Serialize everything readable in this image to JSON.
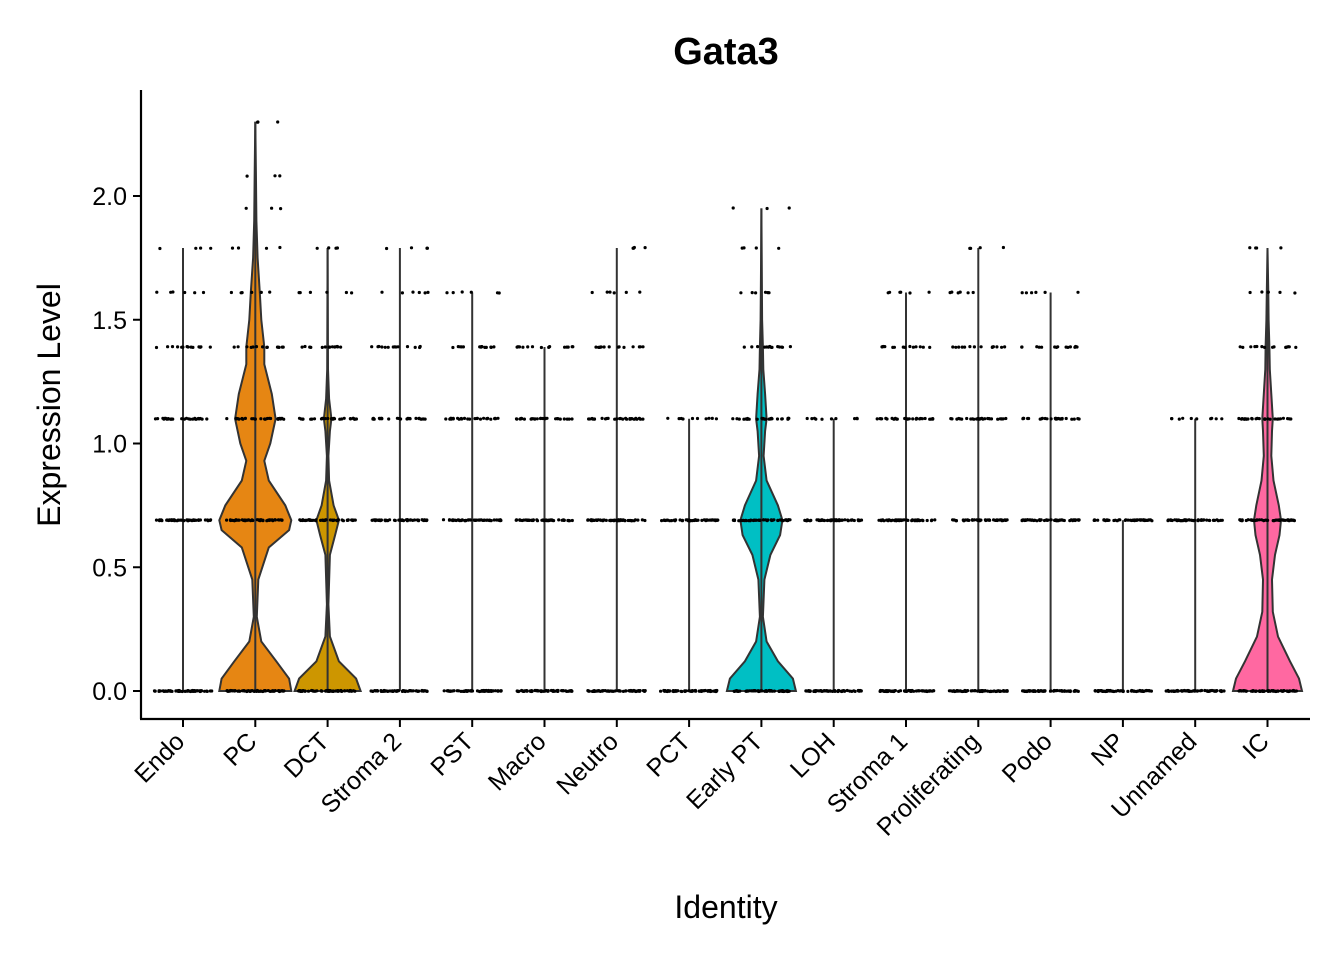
{
  "chart_data": {
    "type": "violin",
    "title": "Gata3",
    "xlabel": "Identity",
    "ylabel": "Expression Level",
    "ylim": [
      -0.11,
      2.4
    ],
    "yticks": [
      0.0,
      0.5,
      1.0,
      1.5,
      2.0
    ],
    "ytick_labels": [
      "0.0",
      "0.5",
      "1.0",
      "1.5",
      "2.0"
    ],
    "legend": "none",
    "grid": false,
    "jitter_points": true,
    "categories": [
      {
        "name": "Endo",
        "color": "#F8766D",
        "max": 1.79,
        "levels": [
          0,
          0.69,
          1.1,
          1.39,
          1.61,
          1.79
        ],
        "violin": [
          [
            0,
            0
          ],
          [
            0.69,
            0
          ],
          [
            1.79,
            0
          ]
        ]
      },
      {
        "name": "PC",
        "color": "#E68613",
        "max": 2.3,
        "levels": [
          0,
          0.69,
          1.1,
          1.39,
          1.61,
          1.79,
          1.95,
          2.08,
          2.3
        ],
        "violin": [
          [
            0,
            0.48
          ],
          [
            0.05,
            0.45
          ],
          [
            0.12,
            0.28
          ],
          [
            0.2,
            0.08
          ],
          [
            0.3,
            0.02
          ],
          [
            0.45,
            0.04
          ],
          [
            0.58,
            0.18
          ],
          [
            0.65,
            0.45
          ],
          [
            0.69,
            0.48
          ],
          [
            0.75,
            0.4
          ],
          [
            0.85,
            0.18
          ],
          [
            0.93,
            0.12
          ],
          [
            1.0,
            0.2
          ],
          [
            1.1,
            0.27
          ],
          [
            1.2,
            0.22
          ],
          [
            1.32,
            0.12
          ],
          [
            1.39,
            0.12
          ],
          [
            1.5,
            0.08
          ],
          [
            1.61,
            0.06
          ],
          [
            1.75,
            0.03
          ],
          [
            1.9,
            0.015
          ],
          [
            2.1,
            0.008
          ],
          [
            2.3,
            0
          ]
        ]
      },
      {
        "name": "DCT",
        "color": "#CD9600",
        "max": 1.79,
        "levels": [
          0,
          0.69,
          1.1,
          1.39,
          1.61,
          1.79
        ],
        "violin": [
          [
            0,
            0.44
          ],
          [
            0.05,
            0.38
          ],
          [
            0.12,
            0.15
          ],
          [
            0.22,
            0.03
          ],
          [
            0.35,
            0.01
          ],
          [
            0.55,
            0.03
          ],
          [
            0.63,
            0.1
          ],
          [
            0.69,
            0.15
          ],
          [
            0.75,
            0.08
          ],
          [
            0.85,
            0.02
          ],
          [
            0.95,
            0.01
          ],
          [
            1.05,
            0.03
          ],
          [
            1.1,
            0.05
          ],
          [
            1.18,
            0.02
          ],
          [
            1.3,
            0.005
          ],
          [
            1.79,
            0
          ]
        ]
      },
      {
        "name": "Stroma 2",
        "color": "#ABA300",
        "max": 1.79,
        "levels": [
          0,
          0.69,
          1.1,
          1.39,
          1.61,
          1.79
        ],
        "violin": [
          [
            0,
            0
          ],
          [
            0.69,
            0
          ],
          [
            1.79,
            0
          ]
        ]
      },
      {
        "name": "PST",
        "color": "#7CAE00",
        "max": 1.61,
        "levels": [
          0,
          0.69,
          1.1,
          1.39,
          1.61
        ],
        "violin": [
          [
            0,
            0
          ],
          [
            0.69,
            0
          ],
          [
            1.61,
            0
          ]
        ]
      },
      {
        "name": "Macro",
        "color": "#0CB702",
        "max": 1.39,
        "levels": [
          0,
          0.69,
          1.1,
          1.39
        ],
        "violin": [
          [
            0,
            0
          ],
          [
            0.69,
            0
          ],
          [
            1.39,
            0
          ]
        ]
      },
      {
        "name": "Neutro",
        "color": "#00BE67",
        "max": 1.79,
        "levels": [
          0,
          0.69,
          1.1,
          1.39,
          1.61,
          1.79
        ],
        "violin": [
          [
            0,
            0
          ],
          [
            0.69,
            0
          ],
          [
            1.79,
            0
          ]
        ]
      },
      {
        "name": "PCT",
        "color": "#00C19A",
        "max": 1.1,
        "levels": [
          0,
          0.69,
          1.1
        ],
        "violin": [
          [
            0,
            0
          ],
          [
            0.69,
            0
          ],
          [
            1.1,
            0
          ]
        ]
      },
      {
        "name": "Early PT",
        "color": "#00BFC4",
        "max": 1.95,
        "levels": [
          0,
          0.69,
          1.1,
          1.39,
          1.61,
          1.79,
          1.95
        ],
        "violin": [
          [
            0,
            0.46
          ],
          [
            0.05,
            0.42
          ],
          [
            0.12,
            0.22
          ],
          [
            0.2,
            0.07
          ],
          [
            0.3,
            0.02
          ],
          [
            0.45,
            0.04
          ],
          [
            0.55,
            0.12
          ],
          [
            0.63,
            0.25
          ],
          [
            0.69,
            0.28
          ],
          [
            0.75,
            0.22
          ],
          [
            0.85,
            0.07
          ],
          [
            0.95,
            0.03
          ],
          [
            1.05,
            0.05
          ],
          [
            1.1,
            0.07
          ],
          [
            1.2,
            0.05
          ],
          [
            1.3,
            0.025
          ],
          [
            1.39,
            0.02
          ],
          [
            1.5,
            0.01
          ],
          [
            1.7,
            0.005
          ],
          [
            1.95,
            0
          ]
        ]
      },
      {
        "name": "LOH",
        "color": "#00B8E7",
        "max": 1.1,
        "levels": [
          0,
          0.69,
          1.1
        ],
        "violin": [
          [
            0,
            0
          ],
          [
            0.69,
            0
          ],
          [
            1.1,
            0
          ]
        ]
      },
      {
        "name": "Stroma 1",
        "color": "#00A9FF",
        "max": 1.61,
        "levels": [
          0,
          0.69,
          1.1,
          1.39,
          1.61
        ],
        "violin": [
          [
            0,
            0
          ],
          [
            0.69,
            0
          ],
          [
            1.61,
            0
          ]
        ]
      },
      {
        "name": "Proliferating",
        "color": "#8494FF",
        "max": 1.79,
        "levels": [
          0,
          0.69,
          1.1,
          1.39,
          1.61,
          1.79
        ],
        "violin": [
          [
            0,
            0
          ],
          [
            0.69,
            0
          ],
          [
            1.79,
            0
          ]
        ]
      },
      {
        "name": "Podo",
        "color": "#C77CFF",
        "max": 1.61,
        "levels": [
          0,
          0.69,
          1.1,
          1.39,
          1.61
        ],
        "violin": [
          [
            0,
            0
          ],
          [
            0.69,
            0
          ],
          [
            1.61,
            0
          ]
        ]
      },
      {
        "name": "NP",
        "color": "#ED68ED",
        "max": 0.69,
        "levels": [
          0,
          0.69
        ],
        "violin": [
          [
            0,
            0
          ],
          [
            0.69,
            0
          ]
        ]
      },
      {
        "name": "Unnamed",
        "color": "#FF61CC",
        "max": 1.1,
        "levels": [
          0,
          0.69,
          1.1
        ],
        "violin": [
          [
            0,
            0
          ],
          [
            0.69,
            0
          ],
          [
            1.1,
            0
          ]
        ]
      },
      {
        "name": "IC",
        "color": "#FF68A1",
        "max": 1.79,
        "levels": [
          0,
          0.69,
          1.1,
          1.39,
          1.61,
          1.79
        ],
        "violin": [
          [
            0,
            0.46
          ],
          [
            0.05,
            0.42
          ],
          [
            0.12,
            0.3
          ],
          [
            0.22,
            0.14
          ],
          [
            0.32,
            0.07
          ],
          [
            0.45,
            0.06
          ],
          [
            0.55,
            0.1
          ],
          [
            0.63,
            0.16
          ],
          [
            0.69,
            0.18
          ],
          [
            0.75,
            0.15
          ],
          [
            0.85,
            0.08
          ],
          [
            0.95,
            0.05
          ],
          [
            1.05,
            0.06
          ],
          [
            1.1,
            0.07
          ],
          [
            1.2,
            0.05
          ],
          [
            1.3,
            0.03
          ],
          [
            1.39,
            0.025
          ],
          [
            1.5,
            0.015
          ],
          [
            1.61,
            0.01
          ],
          [
            1.79,
            0
          ]
        ]
      }
    ]
  }
}
